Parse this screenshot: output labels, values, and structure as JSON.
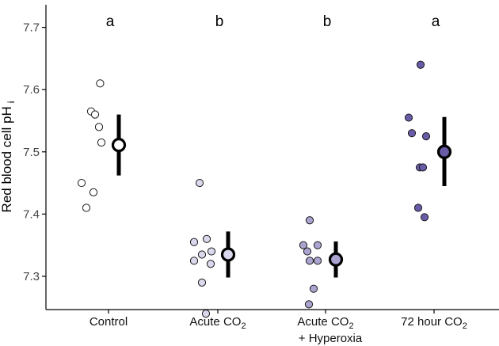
{
  "chart_data": {
    "type": "scatter",
    "subtype": "dot-plot with mean and error bars",
    "ylabel": "Red blood cell pH",
    "ylabel_subscript": "i",
    "ylim": [
      7.23,
      7.73
    ],
    "yticks": [
      7.3,
      7.4,
      7.5,
      7.6,
      7.7
    ],
    "categories": [
      {
        "label": "Control",
        "label_line2": "",
        "sub": ""
      },
      {
        "label": "Acute CO",
        "label_line2": "",
        "sub": "2"
      },
      {
        "label": "Acute CO",
        "label_line2": "+ Hyperoxia",
        "sub": "2"
      },
      {
        "label": "72 hour CO",
        "label_line2": "",
        "sub": "2"
      }
    ],
    "significance_letters": [
      "a",
      "b",
      "b",
      "a"
    ],
    "series": [
      {
        "name": "Control",
        "fill": "#ffffff",
        "values": [
          7.61,
          7.565,
          7.56,
          7.54,
          7.515,
          7.45,
          7.435,
          7.41
        ],
        "jitter": [
          0.02,
          -0.55,
          -0.3,
          -0.05,
          0.1,
          -1.15,
          -0.4,
          -0.85
        ],
        "mean": 7.511,
        "err_low": 7.462,
        "err_high": 7.56
      },
      {
        "name": "Acute CO2",
        "fill": "#d9d8ec",
        "values": [
          7.45,
          7.36,
          7.355,
          7.34,
          7.335,
          7.325,
          7.32,
          7.29,
          7.24
        ],
        "jitter": [
          -0.6,
          -0.15,
          -0.95,
          0.15,
          -0.45,
          -0.95,
          0.1,
          -0.45,
          -0.2
        ],
        "mean": 7.335,
        "err_low": 7.298,
        "err_high": 7.372
      },
      {
        "name": "Acute CO2 + Hyperoxia",
        "fill": "#aaa4d0",
        "values": [
          7.39,
          7.35,
          7.35,
          7.34,
          7.325,
          7.325,
          7.28,
          7.255
        ],
        "jitter": [
          -0.45,
          -0.85,
          0.05,
          -0.6,
          -0.45,
          0.05,
          -0.2,
          -0.5
        ],
        "mean": 7.327,
        "err_low": 7.298,
        "err_high": 7.356
      },
      {
        "name": "72 hour CO2",
        "fill": "#6a5ba8",
        "values": [
          7.64,
          7.555,
          7.53,
          7.525,
          7.475,
          7.475,
          7.41,
          7.395
        ],
        "jitter": [
          -0.3,
          -1.05,
          -0.85,
          0.05,
          -0.35,
          -0.15,
          -0.45,
          -0.05
        ],
        "mean": 7.5,
        "err_low": 7.445,
        "err_high": 7.556
      }
    ]
  }
}
